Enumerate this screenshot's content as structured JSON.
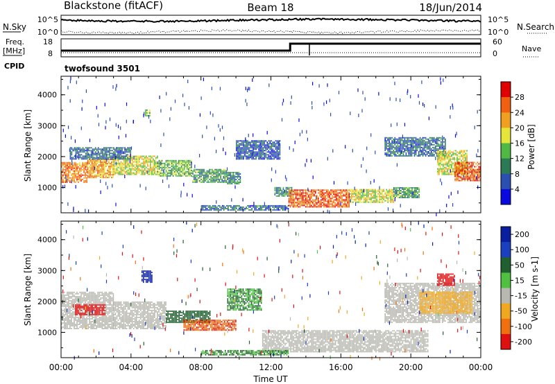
{
  "header": {
    "station": "Blackstone (fitACF)",
    "beam": "Beam 18",
    "date": "18/Jun/2014",
    "cpid_name": "twofsound 3501"
  },
  "panels": {
    "nsky_label": "N.Sky",
    "nsearch_label": "N.Search",
    "freq_label": "Freq.",
    "freq_unit": "[MHz]",
    "nave_label": "Nave",
    "cpid_label": "CPID",
    "nsky_ticks": [
      "10^5",
      "10^0"
    ],
    "nsearch_ticks": [
      "10^5",
      "10^0"
    ],
    "freq_ticks": [
      "18",
      "8"
    ],
    "nave_ticks": [
      "60",
      "0"
    ],
    "freq_step_hour": 13.1,
    "nave_dip_hour": 14.2
  },
  "colors": {
    "power": [
      "#0a0ae0",
      "#2b4fb0",
      "#2a7a55",
      "#50b845",
      "#e6e63a",
      "#f0a020",
      "#f06010",
      "#e00000"
    ],
    "velocity": [
      "#0a1ea0",
      "#1a40c0",
      "#206030",
      "#50c040",
      "#b8b8b0",
      "#f0a820",
      "#f07010",
      "#e01010"
    ]
  },
  "chart_data": [
    {
      "type": "heatmap",
      "name": "Power",
      "xlabel": "",
      "ylabel": "Slant Range [km]",
      "x_range_hours": [
        0,
        24
      ],
      "ylim": [
        180,
        4600
      ],
      "y_ticks": [
        "1000",
        "2000",
        "3000",
        "4000"
      ],
      "colorbar_label": "Power [dB]",
      "colorbar_ticks": [
        "28",
        "24",
        "20",
        "16",
        "12",
        "8",
        "4"
      ],
      "bands": [
        {
          "t": [
            0.0,
            1.5
          ],
          "r": [
            1150,
            1800
          ],
          "v": 24
        },
        {
          "t": [
            1.5,
            3.0
          ],
          "r": [
            1300,
            1900
          ],
          "v": 22
        },
        {
          "t": [
            3.0,
            5.5
          ],
          "r": [
            1400,
            2000
          ],
          "v": 18
        },
        {
          "t": [
            5.5,
            7.5
          ],
          "r": [
            1350,
            1850
          ],
          "v": 14
        },
        {
          "t": [
            7.5,
            9.5
          ],
          "r": [
            1150,
            1600
          ],
          "v": 12
        },
        {
          "t": [
            9.5,
            10.3
          ],
          "r": [
            1100,
            1500
          ],
          "v": 10
        },
        {
          "t": [
            0.5,
            4.0
          ],
          "r": [
            1900,
            2300
          ],
          "v": 8
        },
        {
          "t": [
            10.0,
            12.5
          ],
          "r": [
            1900,
            2500
          ],
          "v": 6
        },
        {
          "t": [
            8.0,
            13.0
          ],
          "r": [
            250,
            400
          ],
          "v": 8
        },
        {
          "t": [
            12.2,
            13.2
          ],
          "r": [
            700,
            1000
          ],
          "v": 10
        },
        {
          "t": [
            13.0,
            16.5
          ],
          "r": [
            350,
            900
          ],
          "v": 26
        },
        {
          "t": [
            16.5,
            19.0
          ],
          "r": [
            500,
            950
          ],
          "v": 18
        },
        {
          "t": [
            19.0,
            20.5
          ],
          "r": [
            650,
            1000
          ],
          "v": 12
        },
        {
          "t": [
            18.5,
            22.0
          ],
          "r": [
            2000,
            2600
          ],
          "v": 8
        },
        {
          "t": [
            21.5,
            23.2
          ],
          "r": [
            1400,
            2200
          ],
          "v": 18
        },
        {
          "t": [
            22.5,
            24.0
          ],
          "r": [
            1200,
            1800
          ],
          "v": 26
        },
        {
          "t": [
            4.8,
            5.1
          ],
          "r": [
            3300,
            3500
          ],
          "v": 14
        }
      ]
    },
    {
      "type": "heatmap",
      "name": "Velocity",
      "xlabel": "Time UT",
      "ylabel": "Slant Range [km]",
      "x_range_hours": [
        0,
        24
      ],
      "x_ticks": [
        "00:00",
        "04:00",
        "08:00",
        "12:00",
        "16:00",
        "20:00",
        "00:00"
      ],
      "ylim": [
        180,
        4600
      ],
      "y_ticks": [
        "1000",
        "2000",
        "3000",
        "4000"
      ],
      "colorbar_label": "Velocity [m s-1]",
      "colorbar_ticks": [
        "200",
        "100",
        "50",
        "15",
        "-15",
        "-50",
        "-100",
        "-200"
      ],
      "bands": [
        {
          "t": [
            0.0,
            3.0
          ],
          "r": [
            1100,
            2300
          ],
          "v": -5
        },
        {
          "t": [
            0.8,
            2.5
          ],
          "r": [
            1550,
            1900
          ],
          "v": -150
        },
        {
          "t": [
            3.0,
            6.0
          ],
          "r": [
            1100,
            2000
          ],
          "v": 0
        },
        {
          "t": [
            6.0,
            8.5
          ],
          "r": [
            1300,
            1700
          ],
          "v": 40
        },
        {
          "t": [
            7.0,
            10.0
          ],
          "r": [
            1050,
            1400
          ],
          "v": -90
        },
        {
          "t": [
            9.5,
            11.5
          ],
          "r": [
            1700,
            2400
          ],
          "v": 30
        },
        {
          "t": [
            11.5,
            21.0
          ],
          "r": [
            350,
            1050
          ],
          "v": 0
        },
        {
          "t": [
            8.0,
            13.0
          ],
          "r": [
            250,
            400
          ],
          "v": 30
        },
        {
          "t": [
            18.5,
            24.0
          ],
          "r": [
            1300,
            2600
          ],
          "v": 0
        },
        {
          "t": [
            20.5,
            23.5
          ],
          "r": [
            1600,
            2300
          ],
          "v": -30
        },
        {
          "t": [
            4.6,
            5.2
          ],
          "r": [
            2600,
            3000
          ],
          "v": 200
        },
        {
          "t": [
            21.5,
            22.5
          ],
          "r": [
            2500,
            2900
          ],
          "v": -150
        }
      ]
    }
  ]
}
